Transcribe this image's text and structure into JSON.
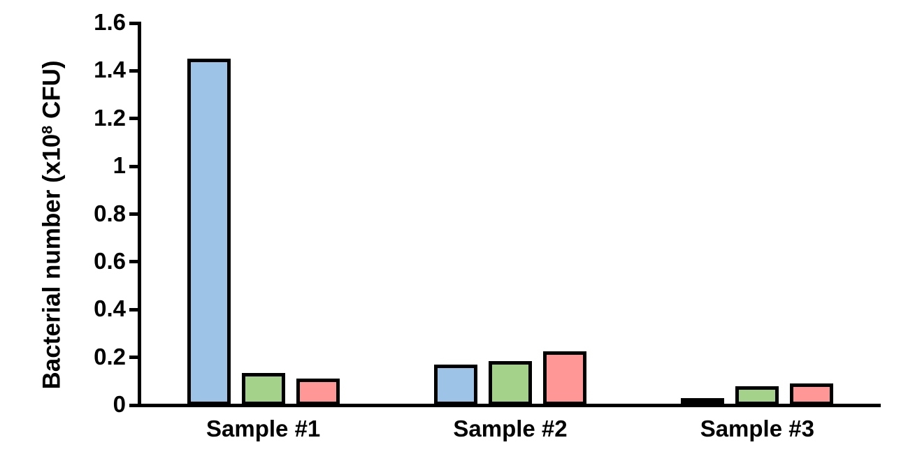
{
  "chart_data": {
    "type": "bar",
    "title": "",
    "xlabel": "",
    "ylabel": "Bacterial number (x10⁸ CFU)",
    "ylabel_prefix": "Bacterial number (x10",
    "ylabel_sup": "8",
    "ylabel_suffix": " CFU)",
    "categories": [
      "Sample #1",
      "Sample #2",
      "Sample #3"
    ],
    "series": [
      {
        "name": "blue-series",
        "color": "#9DC3E6",
        "values": [
          1.45,
          0.17,
          0.03
        ]
      },
      {
        "name": "green-series",
        "color": "#A5D28A",
        "values": [
          0.135,
          0.185,
          0.08
        ]
      },
      {
        "name": "red-series",
        "color": "#FF9797",
        "values": [
          0.11,
          0.225,
          0.09
        ]
      }
    ],
    "ylim": [
      0,
      1.6
    ],
    "ytick_labels": [
      "0",
      "0.2",
      "0.4",
      "0.6",
      "0.8",
      "1",
      "1.2",
      "1.4",
      "1.6"
    ],
    "grid": false,
    "legend_position": "none",
    "bar_outline_color": "#000000",
    "axis_color": "#000000",
    "background_color": "#FFFFFF"
  }
}
